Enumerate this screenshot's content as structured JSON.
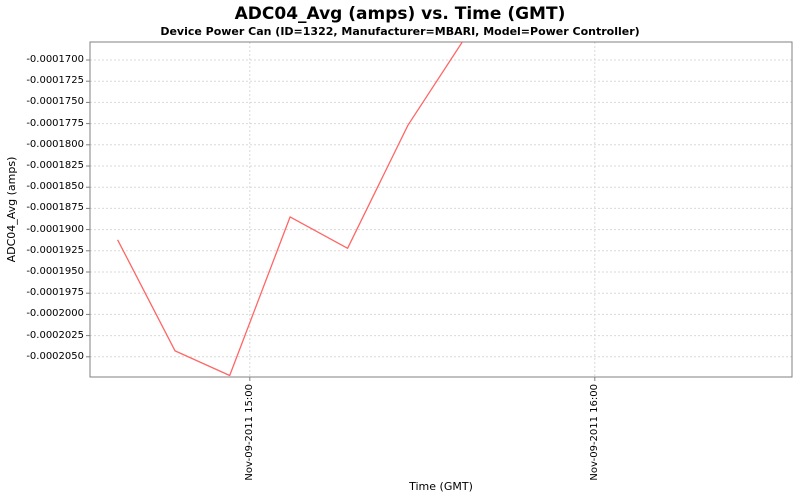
{
  "chart": {
    "title": "ADC04_Avg (amps) vs. Time (GMT)",
    "subtitle": "Device Power Can (ID=1322, Manufacturer=MBARI, Model=Power Controller)",
    "xlabel": "Time (GMT)",
    "ylabel": "ADC04_Avg (amps)"
  },
  "chart_data": {
    "type": "line",
    "title": "ADC04_Avg (amps) vs. Time (GMT)",
    "subtitle": "Device Power Can (ID=1322, Manufacturer=MBARI, Model=Power Controller)",
    "xlabel": "Time (GMT)",
    "ylabel": "ADC04_Avg (amps)",
    "legend": "none",
    "grid": "dashed",
    "x_axis": {
      "tick_labels": [
        "Nov-09-2011 15:00",
        "Nov-09-2011 16:00"
      ],
      "tick_minutes_since_1400": [
        60,
        120
      ],
      "xlim_minutes_since_1400": [
        32.2,
        154.3
      ]
    },
    "y_axis": {
      "tick_labels": [
        "-0.0001700",
        "-0.0001725",
        "-0.0001750",
        "-0.0001775",
        "-0.0001800",
        "-0.0001825",
        "-0.0001850",
        "-0.0001875",
        "-0.0001900",
        "-0.0001925",
        "-0.0001950",
        "-0.0001975",
        "-0.0002000",
        "-0.0002025",
        "-0.0002050"
      ],
      "tick_values": [
        -0.00017,
        -0.0001725,
        -0.000175,
        -0.0001775,
        -0.00018,
        -0.0001825,
        -0.000185,
        -0.0001875,
        -0.00019,
        -0.0001925,
        -0.000195,
        -0.0001975,
        -0.0002,
        -0.0002025,
        -0.000205
      ],
      "ylim": [
        -0.00020738,
        -0.00016788
      ]
    },
    "series": [
      {
        "name": "ADC04_Avg (amps)",
        "color": "#ff6666",
        "points_time_gmt": [
          "14:37",
          "14:47",
          "14:57",
          "15:07",
          "15:17",
          "15:27",
          "15:38"
        ],
        "points_minutes_since_1400": [
          37,
          47,
          56.5,
          67,
          77,
          87.5,
          98
        ],
        "values": [
          -0.0001912,
          -0.0002043,
          -0.0002072,
          -0.0001885,
          -0.0001922,
          -0.0001777,
          -0.0001668
        ],
        "note": "values estimated from gridlines; final point lies above the visible y-range so the last segment is clipped at the plot top edge"
      }
    ]
  },
  "colors": {
    "line": "#ff6666",
    "gridline": "#d9d9d9",
    "plot_border": "#808080",
    "tick_mark": "#808080",
    "background": "#ffffff",
    "text": "#000000"
  }
}
